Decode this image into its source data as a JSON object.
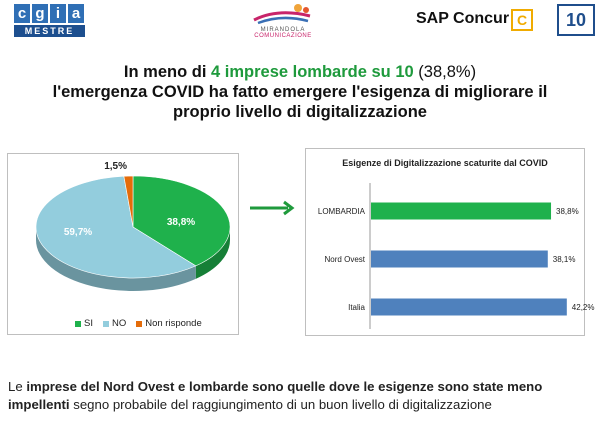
{
  "header": {
    "cgia_letters": [
      "c",
      "g",
      "i",
      "a"
    ],
    "cgia_subtitle": "MESTRE",
    "mirandola_line1": "MIRANDOLA",
    "mirandola_line2": "COMUNICAZIONE",
    "sap_label": "SAP Concur",
    "sap_icon": "C",
    "page_number": "10"
  },
  "title": {
    "p1": "In meno di ",
    "p2": "4 imprese lombarde su 10",
    "p3": " (38,8%)",
    "line2": "l'emergenza COVID ha fatto emergere l'esigenza di migliorare il",
    "line3": "proprio livello di digitalizzazione"
  },
  "chart_data": [
    {
      "type": "pie",
      "slices": [
        {
          "name": "SI",
          "value": 38.8,
          "label": "38,8%",
          "color": "#1fb14c"
        },
        {
          "name": "NO",
          "value": 59.7,
          "label": "59,7%",
          "color": "#93cddd"
        },
        {
          "name": "Non risponde",
          "value": 1.5,
          "label": "1,5%",
          "color": "#e46c0a"
        }
      ],
      "legend": [
        "SI",
        "NO",
        "Non risponde"
      ],
      "legend_position": "bottom"
    },
    {
      "type": "bar",
      "orientation": "horizontal",
      "title": "Esigenze di Digitalizzazione scaturite dal COVID",
      "categories": [
        "LOMBARDIA",
        "Nord Ovest",
        "Italia"
      ],
      "values": [
        38.8,
        38.1,
        42.2
      ],
      "labels": [
        "38,8%",
        "38,1%",
        "42,2%"
      ],
      "colors": [
        "#1fb14c",
        "#4f81bd",
        "#4f81bd"
      ],
      "xlim": [
        0,
        50
      ]
    }
  ],
  "footer": {
    "s1": "Le ",
    "s2": "imprese del Nord Ovest e lombarde sono quelle dove le esigenze sono state meno impellenti",
    "s3": " segno probabile del raggiungimento di un buon livello di digitalizzazione"
  }
}
